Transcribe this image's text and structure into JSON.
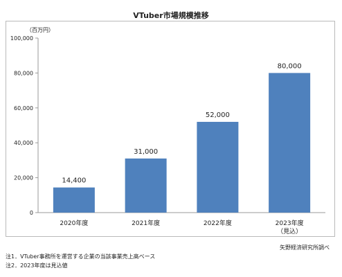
{
  "chart_data": {
    "type": "bar",
    "title": "VTuber市場規模推移",
    "unit_label": "（百万円）",
    "categories": [
      "2020年度",
      "2021年度",
      "2022年度",
      "2023年度"
    ],
    "category_sublabels": [
      "",
      "",
      "",
      "（見込）"
    ],
    "values": [
      14400,
      31000,
      52000,
      80000
    ],
    "value_labels": [
      "14,400",
      "31,000",
      "52,000",
      "80,000"
    ],
    "ylim": [
      0,
      100000
    ],
    "yticks": [
      0,
      20000,
      40000,
      60000,
      80000,
      100000
    ],
    "ytick_labels": [
      "0",
      "20,000",
      "40,000",
      "60,000",
      "80,000",
      "100,000"
    ],
    "bar_color": "#4f81bd",
    "grid": false
  },
  "footer": {
    "source": "矢野経済研究所調べ",
    "note1": "注1．VTuber事務所を運営する企業の当該事業売上高ベース",
    "note2": "注2．2023年度は見込値"
  }
}
